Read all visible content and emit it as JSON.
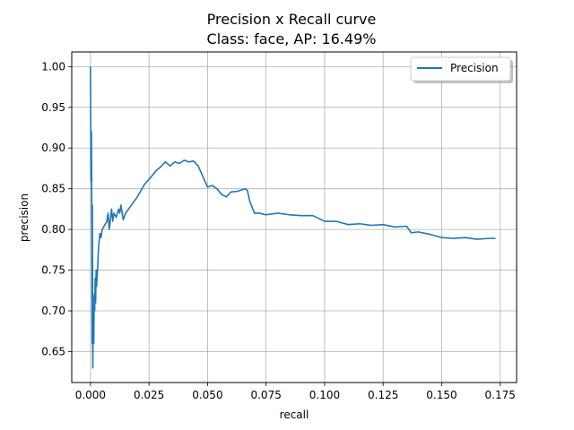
{
  "chart_data": {
    "type": "line",
    "title": "Precision x Recall curve",
    "subtitle": "Class: face, AP: 16.49%",
    "xlabel": "recall",
    "ylabel": "precision",
    "xlim": [
      -0.008,
      0.182
    ],
    "ylim": [
      0.612,
      1.018
    ],
    "xticks": [
      0.0,
      0.025,
      0.05,
      0.075,
      0.1,
      0.125,
      0.15,
      0.175
    ],
    "xtick_labels": [
      "0.000",
      "0.025",
      "0.050",
      "0.075",
      "0.100",
      "0.125",
      "0.150",
      "0.175"
    ],
    "yticks": [
      0.65,
      0.7,
      0.75,
      0.8,
      0.85,
      0.9,
      0.95,
      1.0
    ],
    "ytick_labels": [
      "0.65",
      "0.70",
      "0.75",
      "0.80",
      "0.85",
      "0.90",
      "0.95",
      "1.00"
    ],
    "grid": true,
    "legend_position": "top-right",
    "series": [
      {
        "name": "Precision",
        "color": "#1f77b4",
        "x": [
          0.0,
          0.0002,
          0.0004,
          0.0006,
          0.0007,
          0.0008,
          0.001,
          0.0012,
          0.0014,
          0.0016,
          0.0018,
          0.002,
          0.0022,
          0.0024,
          0.0026,
          0.003,
          0.0035,
          0.004,
          0.0045,
          0.005,
          0.006,
          0.007,
          0.0075,
          0.008,
          0.009,
          0.0095,
          0.01,
          0.011,
          0.012,
          0.0125,
          0.013,
          0.014,
          0.015,
          0.017,
          0.02,
          0.023,
          0.026,
          0.028,
          0.03,
          0.032,
          0.034,
          0.036,
          0.038,
          0.04,
          0.042,
          0.044,
          0.046,
          0.048,
          0.05,
          0.052,
          0.054,
          0.056,
          0.058,
          0.06,
          0.063,
          0.066,
          0.067,
          0.068,
          0.07,
          0.072,
          0.075,
          0.08,
          0.085,
          0.09,
          0.095,
          0.1,
          0.105,
          0.11,
          0.115,
          0.12,
          0.125,
          0.13,
          0.135,
          0.137,
          0.14,
          0.145,
          0.15,
          0.155,
          0.16,
          0.165,
          0.17,
          0.173
        ],
        "y": [
          1.0,
          0.86,
          0.92,
          0.8,
          0.66,
          0.83,
          0.63,
          0.7,
          0.66,
          0.72,
          0.7,
          0.74,
          0.71,
          0.75,
          0.73,
          0.75,
          0.78,
          0.795,
          0.79,
          0.8,
          0.805,
          0.81,
          0.82,
          0.8,
          0.825,
          0.81,
          0.82,
          0.815,
          0.825,
          0.82,
          0.83,
          0.812,
          0.82,
          0.828,
          0.84,
          0.855,
          0.865,
          0.872,
          0.877,
          0.883,
          0.878,
          0.883,
          0.881,
          0.885,
          0.883,
          0.884,
          0.878,
          0.865,
          0.852,
          0.854,
          0.85,
          0.843,
          0.84,
          0.846,
          0.847,
          0.85,
          0.848,
          0.835,
          0.82,
          0.82,
          0.818,
          0.82,
          0.818,
          0.817,
          0.817,
          0.81,
          0.81,
          0.806,
          0.807,
          0.805,
          0.806,
          0.803,
          0.804,
          0.796,
          0.797,
          0.794,
          0.79,
          0.789,
          0.79,
          0.788,
          0.789,
          0.789
        ]
      }
    ]
  }
}
